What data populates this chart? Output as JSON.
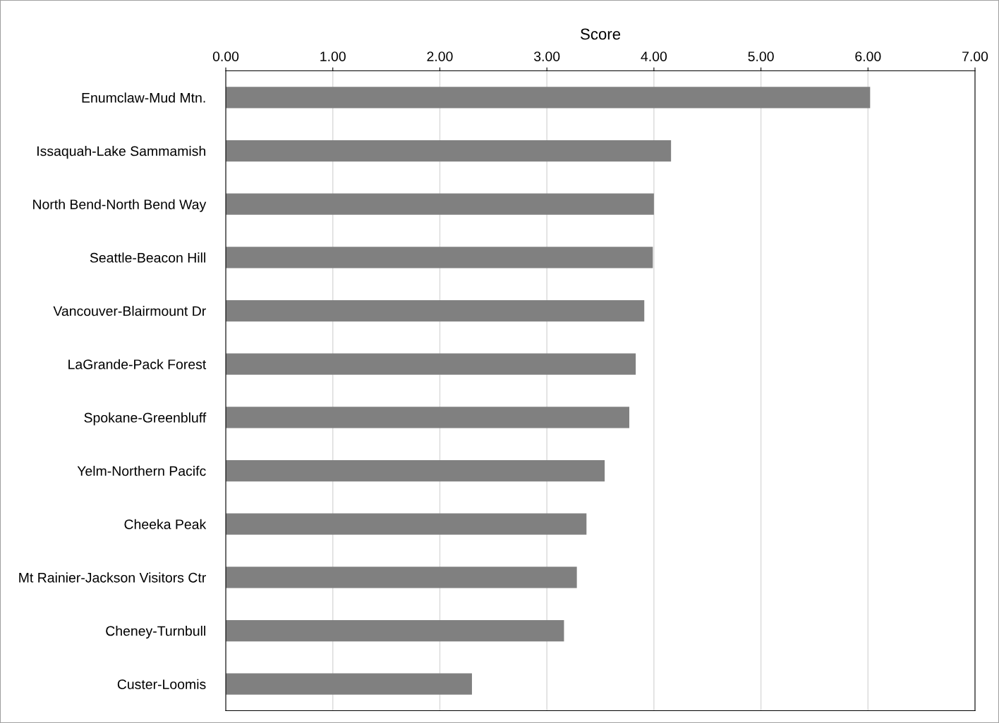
{
  "chart_data": {
    "type": "bar",
    "orientation": "horizontal",
    "xlabel": "Score",
    "categories": [
      "Enumclaw-Mud Mtn.",
      "Issaquah-Lake Sammamish",
      "North Bend-North Bend Way",
      "Seattle-Beacon Hill",
      "Vancouver-Blairmount Dr",
      "LaGrande-Pack Forest",
      "Spokane-Greenbluff",
      "Yelm-Northern Pacifc",
      "Cheeka Peak",
      "Mt Rainier-Jackson Visitors Ctr",
      "Cheney-Turnbull",
      "Custer-Loomis"
    ],
    "series": [
      {
        "color": "#808080",
        "values": [
          6.02,
          4.16,
          4.0,
          3.99,
          3.91,
          3.83,
          3.77,
          3.54,
          3.37,
          3.28,
          3.16,
          2.3
        ]
      }
    ],
    "xlim": [
      0,
      7
    ],
    "xticks": [
      {
        "value": 0,
        "label": "0.00"
      },
      {
        "value": 1,
        "label": "1.00"
      },
      {
        "value": 2,
        "label": "2.00"
      },
      {
        "value": 3,
        "label": "3.00"
      },
      {
        "value": 4,
        "label": "4.00"
      },
      {
        "value": 5,
        "label": "5.00"
      },
      {
        "value": 6,
        "label": "6.00"
      },
      {
        "value": 7,
        "label": "7.00"
      }
    ],
    "grid": "x"
  }
}
